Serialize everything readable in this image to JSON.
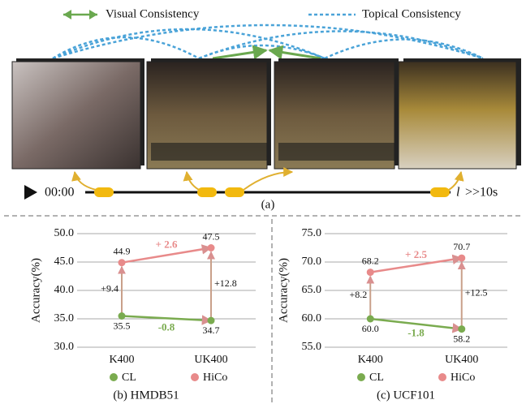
{
  "diagram": {
    "legend": [
      "Visual Consistency",
      "Topical Consistency"
    ],
    "time_start": "00:00",
    "time_end_var": "l",
    "time_end": ">>10s",
    "caption": "(a)"
  },
  "chart_data": [
    {
      "type": "line",
      "caption": "(b) HMDB51",
      "y_label": "Accuracy(%)",
      "categories": [
        "K400",
        "UK400"
      ],
      "series": [
        {
          "name": "CL",
          "color": "#7aab4f",
          "values": [
            35.5,
            34.7
          ],
          "value_labels": [
            "35.5",
            "34.7"
          ],
          "change_label": "-0.8"
        },
        {
          "name": "HiCo",
          "color": "#e88a8a",
          "values": [
            44.9,
            47.5
          ],
          "value_labels": [
            "44.9",
            "47.5"
          ],
          "change_label": "+ 2.6"
        }
      ],
      "gap_labels": [
        "+9.4",
        "+12.8"
      ],
      "ylim": [
        30,
        50
      ],
      "yticks": [
        {
          "value": 30,
          "label": "30.0"
        },
        {
          "value": 35,
          "label": "35.0"
        },
        {
          "value": 40,
          "label": "40.0"
        },
        {
          "value": 45,
          "label": "45.0"
        },
        {
          "value": 50,
          "label": "50.0"
        }
      ],
      "grid": true
    },
    {
      "type": "line",
      "caption": "(c) UCF101",
      "y_label": "Accuracy(%)",
      "categories": [
        "K400",
        "UK400"
      ],
      "series": [
        {
          "name": "CL",
          "color": "#7aab4f",
          "values": [
            60.0,
            58.2
          ],
          "value_labels": [
            "60.0",
            "58.2"
          ],
          "change_label": "-1.8"
        },
        {
          "name": "HiCo",
          "color": "#e88a8a",
          "values": [
            68.2,
            70.7
          ],
          "value_labels": [
            "68.2",
            "70.7"
          ],
          "change_label": "+ 2.5"
        }
      ],
      "gap_labels": [
        "+8.2",
        "+12.5"
      ],
      "ylim": [
        55,
        75
      ],
      "yticks": [
        {
          "value": 55,
          "label": "55.0"
        },
        {
          "value": 60,
          "label": "60.0"
        },
        {
          "value": 65,
          "label": "65.0"
        },
        {
          "value": 70,
          "label": "70.0"
        },
        {
          "value": 75,
          "label": "75.0"
        }
      ],
      "grid": true
    }
  ]
}
